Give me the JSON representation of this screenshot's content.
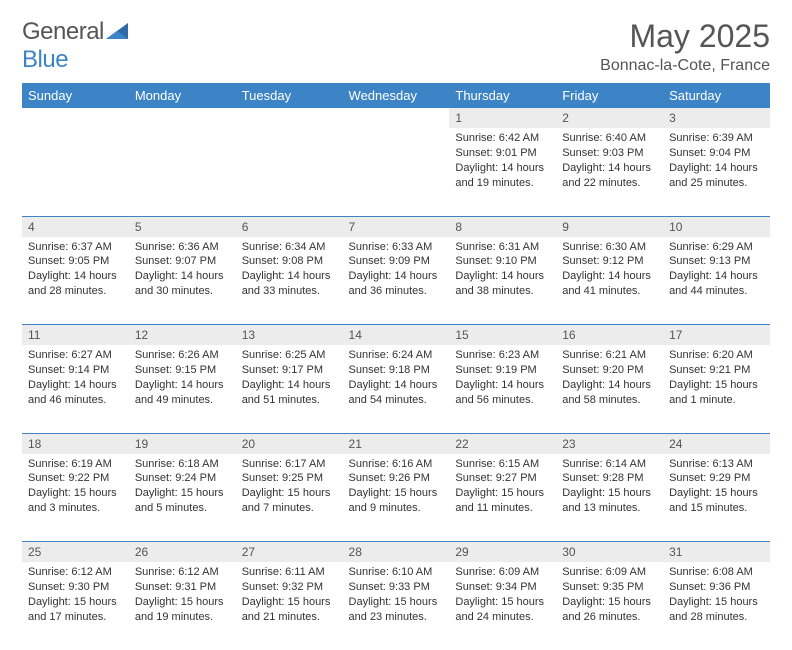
{
  "logo": {
    "text_a": "General",
    "text_b": "Blue"
  },
  "title": "May 2025",
  "location": "Bonnac-la-Cote, France",
  "colors": {
    "header_bg": "#3d84c6",
    "header_text": "#ffffff",
    "daynum_bg": "#ececec",
    "text": "#333333",
    "title_text": "#555555",
    "border": "#3d84c6",
    "background": "#ffffff"
  },
  "typography": {
    "title_fontsize": 32,
    "location_fontsize": 16,
    "dayheader_fontsize": 13,
    "daynum_fontsize": 12,
    "body_fontsize": 11
  },
  "day_headers": [
    "Sunday",
    "Monday",
    "Tuesday",
    "Wednesday",
    "Thursday",
    "Friday",
    "Saturday"
  ],
  "weeks": [
    {
      "nums": [
        "",
        "",
        "",
        "",
        "1",
        "2",
        "3"
      ],
      "cells": [
        {
          "empty": true
        },
        {
          "empty": true
        },
        {
          "empty": true
        },
        {
          "empty": true
        },
        {
          "sunrise": "Sunrise: 6:42 AM",
          "sunset": "Sunset: 9:01 PM",
          "daylight": "Daylight: 14 hours and 19 minutes."
        },
        {
          "sunrise": "Sunrise: 6:40 AM",
          "sunset": "Sunset: 9:03 PM",
          "daylight": "Daylight: 14 hours and 22 minutes."
        },
        {
          "sunrise": "Sunrise: 6:39 AM",
          "sunset": "Sunset: 9:04 PM",
          "daylight": "Daylight: 14 hours and 25 minutes."
        }
      ]
    },
    {
      "nums": [
        "4",
        "5",
        "6",
        "7",
        "8",
        "9",
        "10"
      ],
      "cells": [
        {
          "sunrise": "Sunrise: 6:37 AM",
          "sunset": "Sunset: 9:05 PM",
          "daylight": "Daylight: 14 hours and 28 minutes."
        },
        {
          "sunrise": "Sunrise: 6:36 AM",
          "sunset": "Sunset: 9:07 PM",
          "daylight": "Daylight: 14 hours and 30 minutes."
        },
        {
          "sunrise": "Sunrise: 6:34 AM",
          "sunset": "Sunset: 9:08 PM",
          "daylight": "Daylight: 14 hours and 33 minutes."
        },
        {
          "sunrise": "Sunrise: 6:33 AM",
          "sunset": "Sunset: 9:09 PM",
          "daylight": "Daylight: 14 hours and 36 minutes."
        },
        {
          "sunrise": "Sunrise: 6:31 AM",
          "sunset": "Sunset: 9:10 PM",
          "daylight": "Daylight: 14 hours and 38 minutes."
        },
        {
          "sunrise": "Sunrise: 6:30 AM",
          "sunset": "Sunset: 9:12 PM",
          "daylight": "Daylight: 14 hours and 41 minutes."
        },
        {
          "sunrise": "Sunrise: 6:29 AM",
          "sunset": "Sunset: 9:13 PM",
          "daylight": "Daylight: 14 hours and 44 minutes."
        }
      ]
    },
    {
      "nums": [
        "11",
        "12",
        "13",
        "14",
        "15",
        "16",
        "17"
      ],
      "cells": [
        {
          "sunrise": "Sunrise: 6:27 AM",
          "sunset": "Sunset: 9:14 PM",
          "daylight": "Daylight: 14 hours and 46 minutes."
        },
        {
          "sunrise": "Sunrise: 6:26 AM",
          "sunset": "Sunset: 9:15 PM",
          "daylight": "Daylight: 14 hours and 49 minutes."
        },
        {
          "sunrise": "Sunrise: 6:25 AM",
          "sunset": "Sunset: 9:17 PM",
          "daylight": "Daylight: 14 hours and 51 minutes."
        },
        {
          "sunrise": "Sunrise: 6:24 AM",
          "sunset": "Sunset: 9:18 PM",
          "daylight": "Daylight: 14 hours and 54 minutes."
        },
        {
          "sunrise": "Sunrise: 6:23 AM",
          "sunset": "Sunset: 9:19 PM",
          "daylight": "Daylight: 14 hours and 56 minutes."
        },
        {
          "sunrise": "Sunrise: 6:21 AM",
          "sunset": "Sunset: 9:20 PM",
          "daylight": "Daylight: 14 hours and 58 minutes."
        },
        {
          "sunrise": "Sunrise: 6:20 AM",
          "sunset": "Sunset: 9:21 PM",
          "daylight": "Daylight: 15 hours and 1 minute."
        }
      ]
    },
    {
      "nums": [
        "18",
        "19",
        "20",
        "21",
        "22",
        "23",
        "24"
      ],
      "cells": [
        {
          "sunrise": "Sunrise: 6:19 AM",
          "sunset": "Sunset: 9:22 PM",
          "daylight": "Daylight: 15 hours and 3 minutes."
        },
        {
          "sunrise": "Sunrise: 6:18 AM",
          "sunset": "Sunset: 9:24 PM",
          "daylight": "Daylight: 15 hours and 5 minutes."
        },
        {
          "sunrise": "Sunrise: 6:17 AM",
          "sunset": "Sunset: 9:25 PM",
          "daylight": "Daylight: 15 hours and 7 minutes."
        },
        {
          "sunrise": "Sunrise: 6:16 AM",
          "sunset": "Sunset: 9:26 PM",
          "daylight": "Daylight: 15 hours and 9 minutes."
        },
        {
          "sunrise": "Sunrise: 6:15 AM",
          "sunset": "Sunset: 9:27 PM",
          "daylight": "Daylight: 15 hours and 11 minutes."
        },
        {
          "sunrise": "Sunrise: 6:14 AM",
          "sunset": "Sunset: 9:28 PM",
          "daylight": "Daylight: 15 hours and 13 minutes."
        },
        {
          "sunrise": "Sunrise: 6:13 AM",
          "sunset": "Sunset: 9:29 PM",
          "daylight": "Daylight: 15 hours and 15 minutes."
        }
      ]
    },
    {
      "nums": [
        "25",
        "26",
        "27",
        "28",
        "29",
        "30",
        "31"
      ],
      "cells": [
        {
          "sunrise": "Sunrise: 6:12 AM",
          "sunset": "Sunset: 9:30 PM",
          "daylight": "Daylight: 15 hours and 17 minutes."
        },
        {
          "sunrise": "Sunrise: 6:12 AM",
          "sunset": "Sunset: 9:31 PM",
          "daylight": "Daylight: 15 hours and 19 minutes."
        },
        {
          "sunrise": "Sunrise: 6:11 AM",
          "sunset": "Sunset: 9:32 PM",
          "daylight": "Daylight: 15 hours and 21 minutes."
        },
        {
          "sunrise": "Sunrise: 6:10 AM",
          "sunset": "Sunset: 9:33 PM",
          "daylight": "Daylight: 15 hours and 23 minutes."
        },
        {
          "sunrise": "Sunrise: 6:09 AM",
          "sunset": "Sunset: 9:34 PM",
          "daylight": "Daylight: 15 hours and 24 minutes."
        },
        {
          "sunrise": "Sunrise: 6:09 AM",
          "sunset": "Sunset: 9:35 PM",
          "daylight": "Daylight: 15 hours and 26 minutes."
        },
        {
          "sunrise": "Sunrise: 6:08 AM",
          "sunset": "Sunset: 9:36 PM",
          "daylight": "Daylight: 15 hours and 28 minutes."
        }
      ]
    }
  ]
}
